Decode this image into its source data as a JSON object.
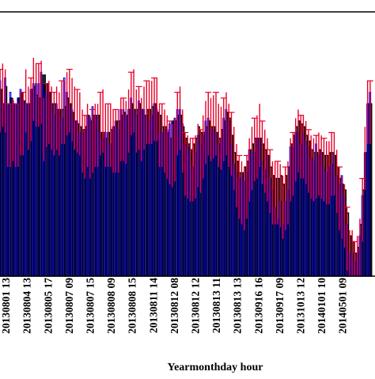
{
  "chart_data": {
    "type": "bar",
    "xlabel": "Yearmonthday  hour",
    "ylim": [
      0,
      460
    ],
    "grid": false,
    "tick_labels": [
      "20130801 13",
      "20130804 13",
      "20130805 17",
      "20130807 09",
      "20130807 15",
      "20130808 09",
      "20130808 15",
      "20130811 14",
      "20130812 08",
      "20130812 12",
      "20130813 11",
      "20130813 13",
      "20130916 16",
      "20130917 09",
      "20131013 12",
      "20140101 10",
      "20140501 09"
    ],
    "series": [
      {
        "color": "#0000ff",
        "values": [
          340,
          300,
          345,
          300,
          320,
          305,
          300,
          310,
          325,
          305,
          300,
          300,
          325,
          335,
          335,
          335,
          355,
          335,
          320,
          320,
          300,
          280,
          300,
          290,
          275,
          345,
          320,
          300,
          290,
          270,
          270,
          250,
          250,
          255,
          280,
          275,
          295,
          280,
          280,
          250,
          240,
          250,
          250,
          230,
          260,
          270,
          255,
          290,
          290,
          280,
          290,
          310,
          290,
          280,
          305,
          290,
          290,
          280,
          270,
          280,
          300,
          290,
          250,
          250,
          255,
          255,
          265,
          270,
          275,
          290,
          290,
          265,
          230,
          225,
          215,
          190,
          215,
          245,
          230,
          245,
          270,
          275,
          255,
          255,
          250,
          230,
          240,
          275,
          290,
          270,
          230,
          195,
          180,
          170,
          175,
          165,
          180,
          220,
          215,
          215,
          240,
          240,
          200,
          185,
          210,
          170,
          150,
          120,
          100,
          130,
          90,
          130,
          150,
          225,
          225,
          250,
          250,
          230,
          250,
          235,
          225,
          205,
          200,
          230,
          210,
          215,
          190,
          180,
          190,
          195,
          210,
          175,
          160,
          175,
          140,
          90,
          40,
          40,
          25,
          40,
          70,
          140,
          215,
          300,
          320
        ]
      },
      {
        "color": "#000000",
        "values": [
          325,
          300,
          330,
          300,
          310,
          300,
          300,
          310,
          320,
          305,
          300,
          300,
          325,
          330,
          315,
          310,
          350,
          350,
          335,
          320,
          300,
          300,
          290,
          290,
          290,
          295,
          310,
          300,
          285,
          270,
          265,
          260,
          255,
          260,
          280,
          270,
          280,
          280,
          280,
          250,
          250,
          240,
          250,
          255,
          260,
          270,
          270,
          280,
          285,
          280,
          290,
          300,
          290,
          290,
          300,
          290,
          280,
          290,
          290,
          295,
          300,
          285,
          280,
          260,
          260,
          250,
          240,
          270,
          270,
          280,
          280,
          260,
          240,
          230,
          220,
          230,
          240,
          260,
          250,
          250,
          260,
          270,
          260,
          260,
          250,
          240,
          255,
          270,
          285,
          275,
          245,
          215,
          200,
          180,
          180,
          190,
          200,
          220,
          230,
          240,
          240,
          240,
          230,
          220,
          210,
          190,
          175,
          170,
          170,
          175,
          160,
          175,
          190,
          230,
          245,
          260,
          270,
          265,
          260,
          245,
          235,
          220,
          215,
          215,
          220,
          215,
          210,
          210,
          215,
          215,
          210,
          190,
          170,
          160,
          150,
          110,
          70,
          60,
          40,
          50,
          90,
          150,
          215,
          300,
          300
        ]
      },
      {
        "color": "#e8002a",
        "values": [
          360,
          370,
          360,
          300,
          300,
          310,
          300,
          300,
          320,
          320,
          360,
          330,
          345,
          380,
          370,
          370,
          375,
          310,
          335,
          340,
          330,
          320,
          330,
          320,
          340,
          340,
          355,
          360,
          345,
          330,
          325,
          320,
          290,
          280,
          300,
          280,
          290,
          300,
          300,
          320,
          325,
          300,
          300,
          300,
          290,
          290,
          290,
          310,
          310,
          305,
          325,
          355,
          360,
          325,
          330,
          310,
          330,
          340,
          340,
          340,
          345,
          345,
          300,
          300,
          290,
          280,
          270,
          265,
          275,
          320,
          330,
          290,
          250,
          245,
          240,
          240,
          245,
          265,
          255,
          280,
          305,
          320,
          310,
          315,
          320,
          300,
          295,
          310,
          320,
          300,
          285,
          260,
          230,
          210,
          200,
          190,
          210,
          240,
          260,
          275,
          280,
          300,
          270,
          255,
          240,
          220,
          200,
          200,
          200,
          195,
          175,
          190,
          200,
          240,
          250,
          275,
          290,
          280,
          280,
          270,
          255,
          245,
          240,
          245,
          250,
          245,
          240,
          235,
          235,
          250,
          250,
          220,
          190,
          175,
          160,
          120,
          80,
          80,
          60,
          70,
          100,
          170,
          260,
          340,
          340
        ]
      }
    ]
  }
}
